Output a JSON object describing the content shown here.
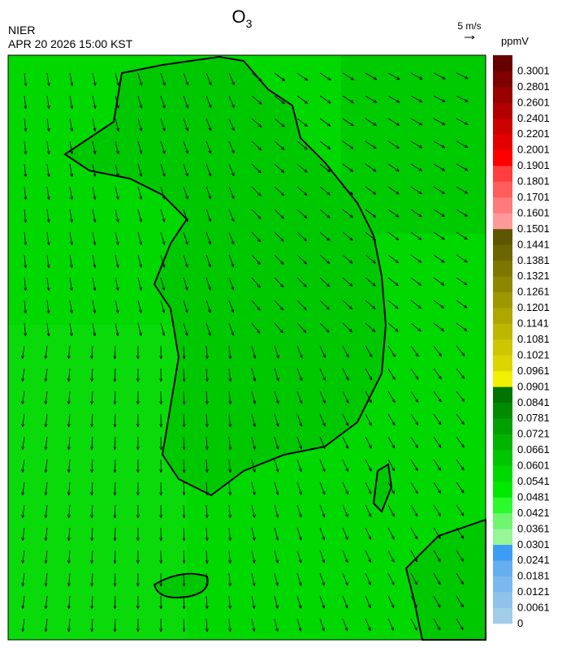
{
  "header": {
    "title": "O",
    "title_subscript": "3",
    "agency": "NIER",
    "timestamp": "APR 20 2026 15:00 KST",
    "wind_scale": "5 m/s"
  },
  "colorbar": {
    "unit": "ppmV",
    "labels": [
      "0",
      "0.0061",
      "0.0121",
      "0.0181",
      "0.0241",
      "0.0301",
      "0.0361",
      "0.0421",
      "0.0481",
      "0.0541",
      "0.0601",
      "0.0661",
      "0.0721",
      "0.0781",
      "0.0841",
      "0.0901",
      "0.0961",
      "0.1021",
      "0.1081",
      "0.1141",
      "0.1201",
      "0.1261",
      "0.1321",
      "0.1381",
      "0.1441",
      "0.1501",
      "0.1601",
      "0.1701",
      "0.1801",
      "0.1901",
      "0.2001",
      "0.2201",
      "0.2401",
      "0.2601",
      "0.2801",
      "0.3001"
    ],
    "colors": [
      "#a2cde9",
      "#8fc3ec",
      "#7bb8ee",
      "#67aef1",
      "#3d9cf5",
      "#98f598",
      "#70f570",
      "#2cfa2c",
      "#00ea00",
      "#00d800",
      "#00c600",
      "#00b400",
      "#00a000",
      "#008c00",
      "#007400",
      "#f0f000",
      "#ddd500",
      "#cdc600",
      "#bdb700",
      "#ada700",
      "#9d9700",
      "#8d8700",
      "#7d7700",
      "#6d6600",
      "#5e5600",
      "#ff9999",
      "#ff7a7a",
      "#ff5c5c",
      "#ff3e3e",
      "#ff0000",
      "#e50000",
      "#cc0000",
      "#b20000",
      "#990000",
      "#7f0000",
      "#660000"
    ]
  }
}
